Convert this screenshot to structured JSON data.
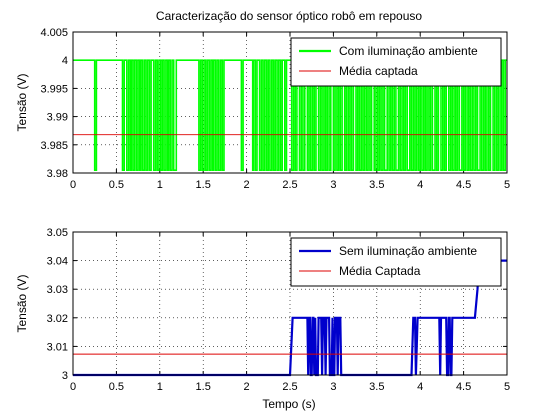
{
  "figure": {
    "title": "Caracterização do sensor óptico robô em repouso",
    "xlabel": "Tempo (s)"
  },
  "chart_data": [
    {
      "type": "line",
      "title": "Caracterização do sensor óptico robô em repouso",
      "xlabel": "",
      "ylabel": "Tensão (V)",
      "xlim": [
        0,
        5
      ],
      "ylim": [
        3.98,
        4.005
      ],
      "xticks": [
        "0",
        "0.5",
        "1",
        "1.5",
        "2",
        "2.5",
        "3",
        "3.5",
        "4",
        "4.5",
        "5"
      ],
      "yticks": [
        "3.98",
        "3.985",
        "3.99",
        "3.995",
        "4",
        "4.005"
      ],
      "grid": true,
      "legend_position": "top-right",
      "low": 3.9805,
      "high": 4.0,
      "series": [
        {
          "name": "Com iluminação ambiente",
          "color": "#00ff00",
          "style": "step-signal",
          "transitions": [
            0.25,
            0.27,
            0.57,
            0.59,
            0.62,
            0.64,
            0.66,
            0.67,
            0.69,
            0.71,
            0.73,
            0.75,
            0.77,
            0.78,
            0.8,
            0.82,
            0.84,
            0.86,
            0.88,
            0.9,
            0.93,
            0.95,
            0.97,
            0.99,
            1.01,
            1.03,
            1.05,
            1.07,
            1.09,
            1.1,
            1.12,
            1.14,
            1.16,
            1.19,
            1.45,
            1.47,
            1.49,
            1.51,
            1.53,
            1.55,
            1.57,
            1.59,
            1.61,
            1.62,
            1.64,
            1.66,
            1.68,
            1.7,
            1.72,
            1.74,
            1.94,
            1.96,
            2.07,
            2.08,
            2.1,
            2.12,
            2.15,
            2.17,
            2.19,
            2.21,
            2.23,
            2.25,
            2.27,
            2.29,
            2.31,
            2.33,
            2.35,
            2.37,
            2.39,
            2.41,
            2.44,
            2.46,
            2.52,
            2.54,
            2.56,
            2.58,
            2.61,
            2.63,
            2.65,
            2.67,
            2.7,
            2.72,
            2.74,
            2.76,
            2.78,
            2.8,
            2.83,
            2.85,
            2.87,
            2.89,
            2.91,
            2.93,
            2.95,
            2.97,
            3.0,
            3.02,
            3.04,
            3.06,
            3.08,
            3.1,
            3.13,
            3.15,
            3.17,
            3.19,
            3.21,
            3.23,
            3.26,
            3.28,
            3.3,
            3.32,
            3.34,
            3.36,
            3.38,
            3.4,
            3.42,
            3.44,
            3.47,
            3.49,
            3.51,
            3.53,
            3.55,
            3.57,
            3.59,
            3.62,
            3.64,
            3.66,
            3.68,
            3.7,
            3.72,
            3.75,
            3.77,
            3.79,
            3.81,
            3.83,
            3.85,
            3.88,
            3.9,
            3.92,
            3.94,
            3.96,
            3.98,
            4.0,
            4.02,
            4.04,
            4.06,
            4.08,
            4.1,
            4.12,
            4.14,
            4.17,
            4.19,
            4.21,
            4.24,
            4.26,
            4.28,
            4.3,
            4.33,
            4.35,
            4.37,
            4.39,
            4.41,
            4.43,
            4.45,
            4.48,
            4.5,
            4.52,
            4.54,
            4.56,
            4.58,
            4.6,
            4.62,
            4.64,
            4.66,
            4.69,
            4.71,
            4.73,
            4.75,
            4.77,
            4.79,
            4.81,
            4.84,
            4.86,
            4.88,
            4.9,
            4.92,
            4.94,
            4.96,
            4.98
          ]
        },
        {
          "name": "Média captada",
          "color": "#dd0000",
          "style": "constant",
          "y": 3.9868
        }
      ]
    },
    {
      "type": "line",
      "title": "",
      "xlabel": "Tempo (s)",
      "ylabel": "Tensão (V)",
      "xlim": [
        0,
        5
      ],
      "ylim": [
        3.0,
        3.05
      ],
      "xticks": [
        "0",
        "0.5",
        "1",
        "1.5",
        "2",
        "2.5",
        "3",
        "3.5",
        "4",
        "4.5",
        "5"
      ],
      "yticks": [
        "3",
        "3.01",
        "3.02",
        "3.03",
        "3.04",
        "3.05"
      ],
      "grid": true,
      "legend_position": "top-right",
      "series": [
        {
          "name": "Sem iluminação ambiente",
          "color": "#0000cc",
          "style": "polyline",
          "points": [
            [
              0,
              3.0
            ],
            [
              2.5,
              3.0
            ],
            [
              2.53,
              3.02
            ],
            [
              2.7,
              3.02
            ],
            [
              2.71,
              3.0
            ],
            [
              2.72,
              3.02
            ],
            [
              2.73,
              3.02
            ],
            [
              2.74,
              3.0
            ],
            [
              2.75,
              3.0
            ],
            [
              2.76,
              3.02
            ],
            [
              2.77,
              3.02
            ],
            [
              2.78,
              3.0
            ],
            [
              2.79,
              3.02
            ],
            [
              2.8,
              3.0
            ],
            [
              2.82,
              3.0
            ],
            [
              2.83,
              3.02
            ],
            [
              2.86,
              3.02
            ],
            [
              2.87,
              3.0
            ],
            [
              2.88,
              3.02
            ],
            [
              2.9,
              3.02
            ],
            [
              2.91,
              3.0
            ],
            [
              2.92,
              3.02
            ],
            [
              2.95,
              3.02
            ],
            [
              2.96,
              3.0
            ],
            [
              2.98,
              3.0
            ],
            [
              2.99,
              3.02
            ],
            [
              3.0,
              3.0
            ],
            [
              3.01,
              3.0
            ],
            [
              3.02,
              3.02
            ],
            [
              3.04,
              3.02
            ],
            [
              3.05,
              3.0
            ],
            [
              3.06,
              3.02
            ],
            [
              3.08,
              3.02
            ],
            [
              3.09,
              3.0
            ],
            [
              3.9,
              3.0
            ],
            [
              3.92,
              3.02
            ],
            [
              3.94,
              3.02
            ],
            [
              3.95,
              3.0
            ],
            [
              3.97,
              3.02
            ],
            [
              4.22,
              3.02
            ],
            [
              4.23,
              3.0
            ],
            [
              4.24,
              3.02
            ],
            [
              4.3,
              3.02
            ],
            [
              4.31,
              3.0
            ],
            [
              4.32,
              3.0
            ],
            [
              4.33,
              3.02
            ],
            [
              4.34,
              3.02
            ],
            [
              4.35,
              3.0
            ],
            [
              4.36,
              3.0
            ],
            [
              4.37,
              3.02
            ],
            [
              4.63,
              3.02
            ],
            [
              4.66,
              3.03
            ],
            [
              4.68,
              3.04
            ],
            [
              5.0,
              3.04
            ]
          ]
        },
        {
          "name": "Média Captada",
          "color": "#dd0000",
          "style": "constant",
          "y": 3.0073
        }
      ]
    }
  ]
}
